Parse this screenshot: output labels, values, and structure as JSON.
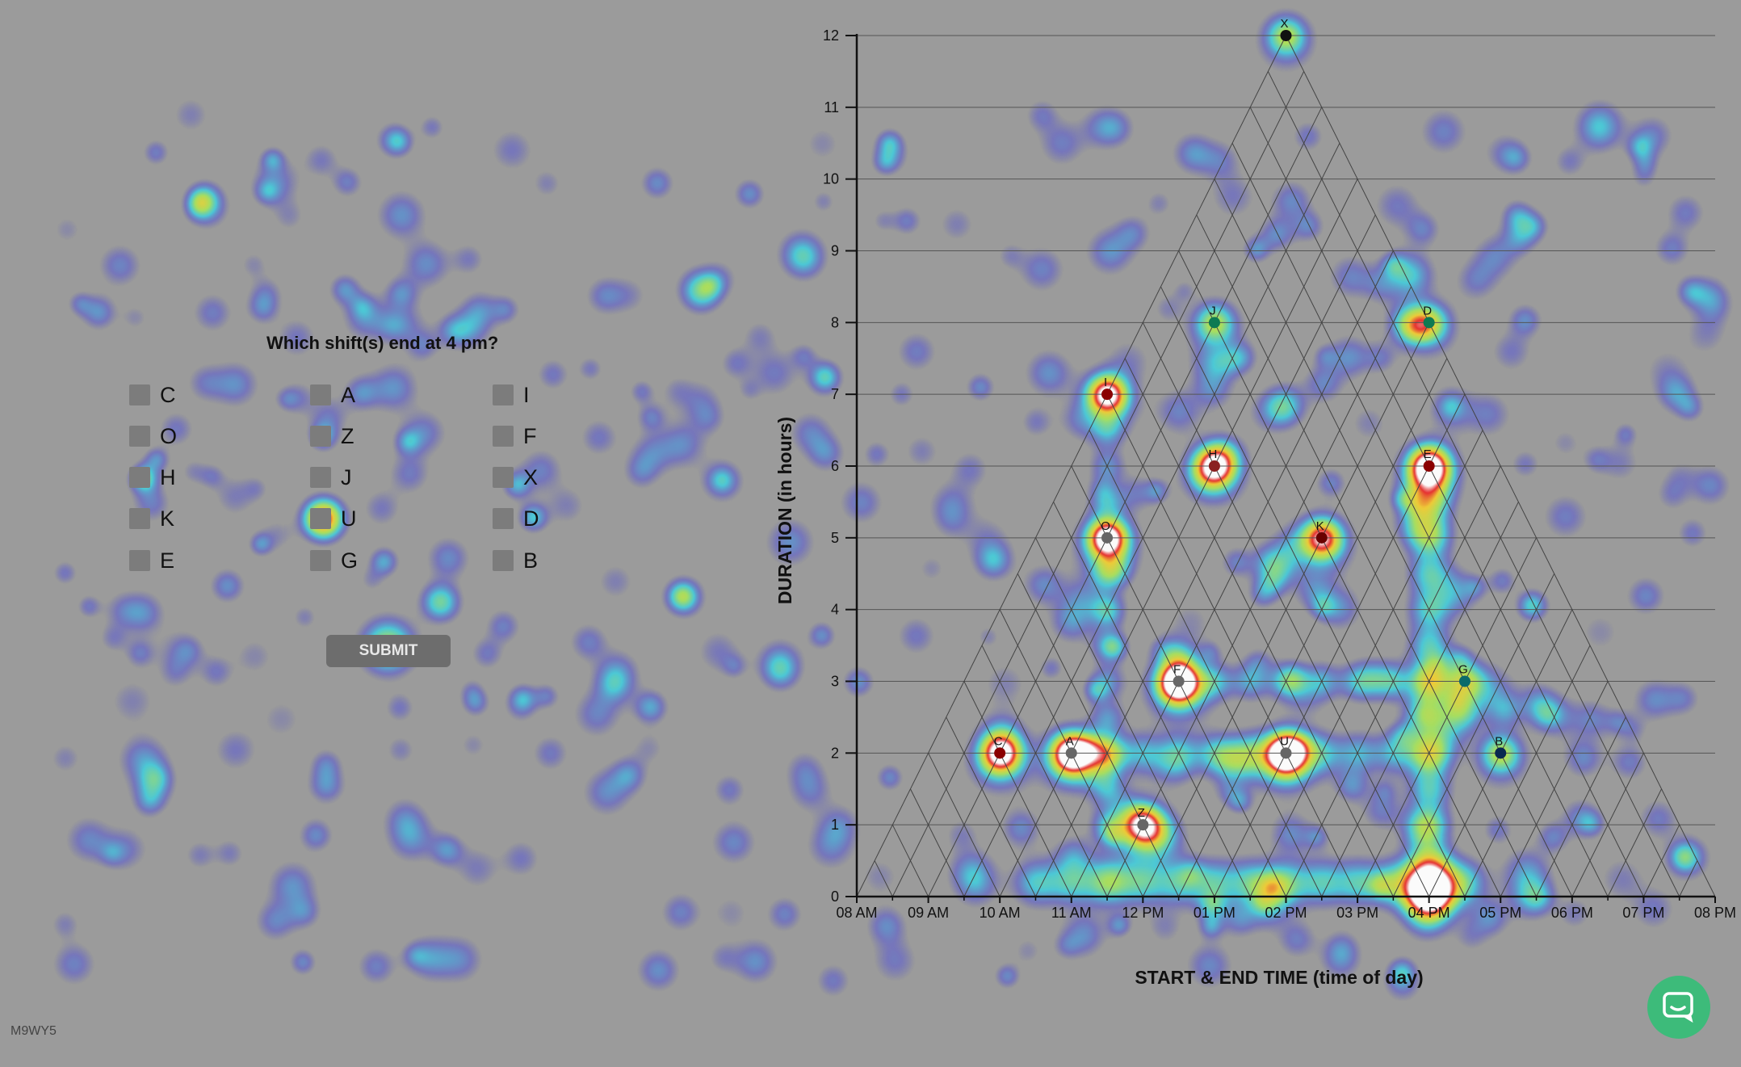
{
  "question": "Which shift(s) end at 4 pm?",
  "options": [
    {
      "label": "C"
    },
    {
      "label": "O"
    },
    {
      "label": "H"
    },
    {
      "label": "K"
    },
    {
      "label": "E"
    },
    {
      "label": "A"
    },
    {
      "label": "Z"
    },
    {
      "label": "J"
    },
    {
      "label": "U"
    },
    {
      "label": "G"
    },
    {
      "label": "I"
    },
    {
      "label": "F"
    },
    {
      "label": "X"
    },
    {
      "label": "D"
    },
    {
      "label": "B"
    }
  ],
  "submit_label": "SUBMIT",
  "participant_code": "M9WY5",
  "colors": {
    "background": "#9b9b9b",
    "chat_button": "#3dbb7a"
  },
  "chart_data": {
    "type": "scatter",
    "xlabel": "START & END TIME (time of day)",
    "ylabel": "DURATION (in hours)",
    "x_ticks": [
      "08 AM",
      "09 AM",
      "10 AM",
      "11 AM",
      "12 PM",
      "01 PM",
      "02 PM",
      "03 PM",
      "04 PM",
      "05 PM",
      "06 PM",
      "07 PM",
      "08 PM"
    ],
    "y_ticks": [
      "0",
      "1",
      "2",
      "3",
      "4",
      "5",
      "6",
      "7",
      "8",
      "9",
      "10",
      "11",
      "12"
    ],
    "xlim": [
      8,
      20
    ],
    "ylim": [
      0,
      12
    ],
    "grid": "horizontal lines plus triangular start/end-time grid",
    "points": [
      {
        "label": "X",
        "x": 14,
        "y": 12,
        "color": "#111111"
      },
      {
        "label": "J",
        "x": 13,
        "y": 8,
        "color": "#0e7a52"
      },
      {
        "label": "D",
        "x": 16,
        "y": 8,
        "color": "#0e7a52"
      },
      {
        "label": "I",
        "x": 11.5,
        "y": 7,
        "color": "#8a0000"
      },
      {
        "label": "H",
        "x": 13,
        "y": 6,
        "color": "#8a2020"
      },
      {
        "label": "E",
        "x": 16,
        "y": 6,
        "color": "#8a0000"
      },
      {
        "label": "O",
        "x": 11.5,
        "y": 5,
        "color": "#666666"
      },
      {
        "label": "K",
        "x": 14.5,
        "y": 5,
        "color": "#6a0000"
      },
      {
        "label": "F",
        "x": 12.5,
        "y": 3,
        "color": "#666666"
      },
      {
        "label": "G",
        "x": 16.5,
        "y": 3,
        "color": "#0b6a6a"
      },
      {
        "label": "C",
        "x": 10,
        "y": 2,
        "color": "#8a0000"
      },
      {
        "label": "A",
        "x": 11,
        "y": 2,
        "color": "#666666"
      },
      {
        "label": "U",
        "x": 14,
        "y": 2,
        "color": "#666666"
      },
      {
        "label": "B",
        "x": 17,
        "y": 2,
        "color": "#082850"
      },
      {
        "label": "Z",
        "x": 12,
        "y": 1,
        "color": "#666666"
      }
    ]
  }
}
